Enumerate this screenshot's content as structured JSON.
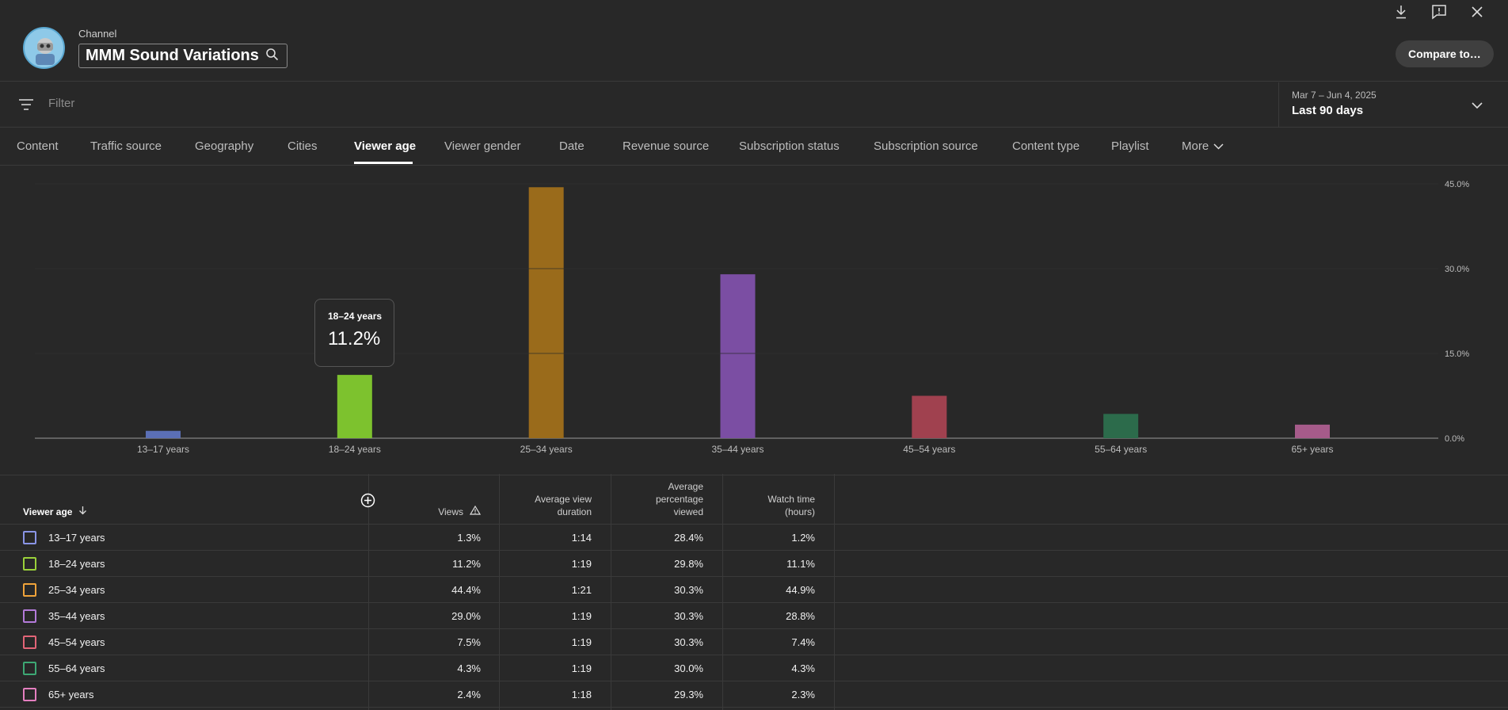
{
  "header": {
    "channel_label": "Channel",
    "channel_name": "MMM Sound Variations",
    "compare_label": "Compare to…"
  },
  "filter": {
    "placeholder": "Filter"
  },
  "date_selector": {
    "range": "Mar 7 – Jun 4, 2025",
    "label": "Last 90 days"
  },
  "tabs": [
    {
      "label": "Content"
    },
    {
      "label": "Traffic source"
    },
    {
      "label": "Geography"
    },
    {
      "label": "Cities"
    },
    {
      "label": "Viewer age"
    },
    {
      "label": "Viewer gender"
    },
    {
      "label": "Date"
    },
    {
      "label": "Revenue source"
    },
    {
      "label": "Subscription status"
    },
    {
      "label": "Subscription source"
    },
    {
      "label": "Content type"
    },
    {
      "label": "Playlist"
    },
    {
      "label": "More"
    }
  ],
  "tooltip": {
    "title": "18–24 years",
    "value": "11.2%"
  },
  "chart_data": {
    "type": "bar",
    "categories": [
      "13–17 years",
      "18–24 years",
      "25–34 years",
      "35–44 years",
      "45–54 years",
      "55–64 years",
      "65+ years"
    ],
    "values": [
      1.3,
      11.2,
      44.4,
      29.0,
      7.5,
      4.3,
      2.4
    ],
    "colors": [
      "#5b6fb5",
      "#7dc22e",
      "#9a6b1b",
      "#7b4ea3",
      "#a0414f",
      "#2c6b4b",
      "#a65b8a"
    ],
    "ylim": [
      0,
      45
    ],
    "yticks": [
      "0.0%",
      "15.0%",
      "30.0%",
      "45.0%"
    ],
    "ytick_values": [
      0,
      15,
      30,
      45
    ],
    "grid": true
  },
  "table": {
    "headers": {
      "viewer_age": "Viewer age",
      "views": "Views",
      "avg_view_duration": [
        "Average view",
        "duration"
      ],
      "avg_pct_viewed": [
        "Average",
        "percentage",
        "viewed"
      ],
      "watch_time": [
        "Watch time",
        "(hours)"
      ]
    },
    "rows": [
      {
        "label": "13–17 years",
        "views": "1.3%",
        "duration": "1:14",
        "pct": "28.4%",
        "watch": "1.2%",
        "color": "#8a95e6"
      },
      {
        "label": "18–24 years",
        "views": "11.2%",
        "duration": "1:19",
        "pct": "29.8%",
        "watch": "11.1%",
        "color": "#9ad13a"
      },
      {
        "label": "25–34 years",
        "views": "44.4%",
        "duration": "1:21",
        "pct": "30.3%",
        "watch": "44.9%",
        "color": "#f0a33a"
      },
      {
        "label": "35–44 years",
        "views": "29.0%",
        "duration": "1:19",
        "pct": "30.3%",
        "watch": "28.8%",
        "color": "#b37ad9"
      },
      {
        "label": "45–54 years",
        "views": "7.5%",
        "duration": "1:19",
        "pct": "30.3%",
        "watch": "7.4%",
        "color": "#e26577"
      },
      {
        "label": "55–64 years",
        "views": "4.3%",
        "duration": "1:19",
        "pct": "30.0%",
        "watch": "4.3%",
        "color": "#3da874"
      },
      {
        "label": "65+ years",
        "views": "2.4%",
        "duration": "1:18",
        "pct": "29.3%",
        "watch": "2.3%",
        "color": "#e47fbf"
      }
    ]
  }
}
